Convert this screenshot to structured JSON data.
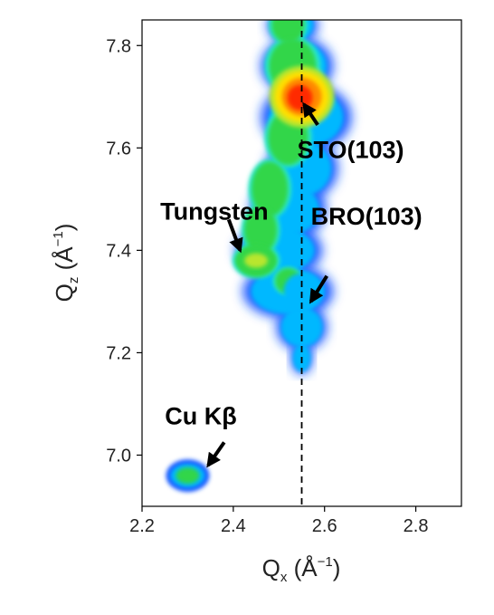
{
  "chart_data": {
    "type": "heatmap",
    "title": "",
    "xlabel": {
      "main": "Q",
      "sub": "x",
      "unit": "(Å",
      "exp": "−1",
      "close": ")"
    },
    "ylabel": {
      "main": "Q",
      "sub": "z",
      "unit": "(Å",
      "exp": "−1",
      "close": ")"
    },
    "xlim": [
      2.2,
      2.9
    ],
    "ylim": [
      6.9,
      7.85
    ],
    "xticks": [
      {
        "value": 2.2,
        "label": "2.2"
      },
      {
        "value": 2.4,
        "label": "2.4"
      },
      {
        "value": 2.6,
        "label": "2.6"
      },
      {
        "value": 2.8,
        "label": "2.8"
      }
    ],
    "yticks": [
      {
        "value": 7.0,
        "label": "7.0"
      },
      {
        "value": 7.2,
        "label": "7.2"
      },
      {
        "value": 7.4,
        "label": "7.4"
      },
      {
        "value": 7.6,
        "label": "7.6"
      },
      {
        "value": 7.8,
        "label": "7.8"
      }
    ],
    "reference_line": {
      "qx": 2.55,
      "style": "dashed",
      "color": "#000000"
    },
    "colormap": [
      "#1a5cff",
      "#00b8ff",
      "#29e6c8",
      "#33d64a",
      "#b8e62e",
      "#ffe000",
      "#ff8a00",
      "#ff2a00"
    ],
    "peaks": [
      {
        "name": "STO(103)",
        "qx": 2.55,
        "qz": 7.7,
        "intensity": "max"
      },
      {
        "name": "Tungsten",
        "qx": 2.45,
        "qz": 7.38,
        "intensity": "medium"
      },
      {
        "name": "BRO(103)",
        "qx": 2.55,
        "qz": 7.32,
        "intensity": "low"
      },
      {
        "name": "Cu Kβ",
        "qx": 2.3,
        "qz": 6.96,
        "intensity": "medium"
      }
    ],
    "annotations": [
      {
        "text": "STO(103)",
        "text_qx": 2.54,
        "text_qz": 7.58,
        "arrow_from": [
          2.585,
          7.645
        ],
        "arrow_to": [
          2.555,
          7.685
        ]
      },
      {
        "text": "Tungsten",
        "text_qx": 2.24,
        "text_qz": 7.46,
        "arrow_from": [
          2.39,
          7.46
        ],
        "arrow_to": [
          2.415,
          7.4
        ]
      },
      {
        "text": "BRO(103)",
        "text_qx": 2.57,
        "text_qz": 7.45,
        "arrow_from": [
          2.605,
          7.35
        ],
        "arrow_to": [
          2.57,
          7.3
        ]
      },
      {
        "text": "Cu Kβ",
        "text_qx": 2.25,
        "text_qz": 7.06,
        "arrow_from": [
          2.38,
          7.025
        ],
        "arrow_to": [
          2.345,
          6.98
        ]
      }
    ],
    "grid": false
  }
}
